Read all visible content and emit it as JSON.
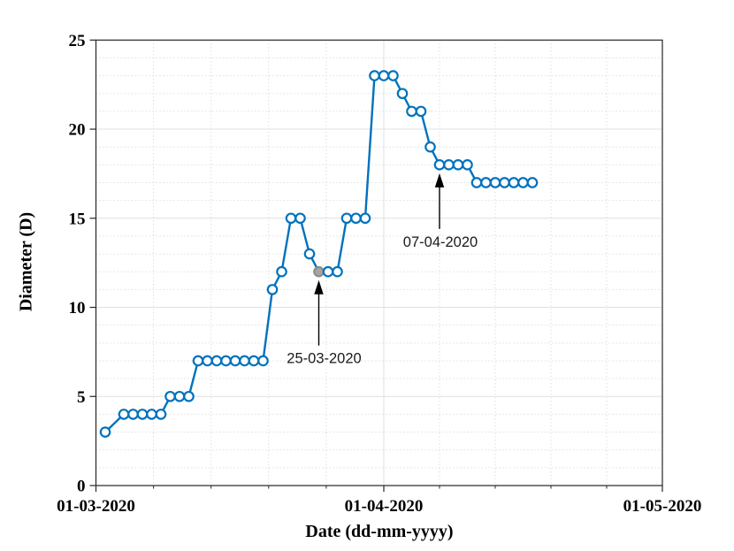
{
  "chart_data": {
    "type": "line",
    "title": "",
    "xlabel": "Date (dd-mm-yyyy)",
    "ylabel": "Diameter (D)",
    "xlim": [
      "01-03-2020",
      "01-05-2020"
    ],
    "ylim": [
      0,
      25
    ],
    "x_ticks": [
      "01-03-2020",
      "01-04-2020",
      "01-05-2020"
    ],
    "y_ticks": [
      0,
      5,
      10,
      15,
      20,
      25
    ],
    "y_minor_step": 1,
    "x_minor_divisions": 5,
    "grid": "major-solid-minor-dotted",
    "legend": "none",
    "series": [
      {
        "name": "diameter",
        "marker": "open-circle",
        "color": "#0072BD",
        "x": [
          "02-03-2020",
          "04-03-2020",
          "05-03-2020",
          "06-03-2020",
          "07-03-2020",
          "08-03-2020",
          "09-03-2020",
          "10-03-2020",
          "11-03-2020",
          "12-03-2020",
          "13-03-2020",
          "14-03-2020",
          "15-03-2020",
          "16-03-2020",
          "17-03-2020",
          "18-03-2020",
          "19-03-2020",
          "20-03-2020",
          "21-03-2020",
          "22-03-2020",
          "23-03-2020",
          "24-03-2020",
          "25-03-2020",
          "26-03-2020",
          "27-03-2020",
          "28-03-2020",
          "29-03-2020",
          "30-03-2020",
          "31-03-2020",
          "01-04-2020",
          "02-04-2020",
          "03-04-2020",
          "04-04-2020",
          "05-04-2020",
          "06-04-2020",
          "07-04-2020",
          "08-04-2020",
          "09-04-2020",
          "10-04-2020",
          "11-04-2020",
          "12-04-2020",
          "13-04-2020",
          "14-04-2020",
          "15-04-2020",
          "16-04-2020",
          "17-04-2020"
        ],
        "y": [
          3,
          4,
          4,
          4,
          4,
          4,
          5,
          5,
          5,
          7,
          7,
          7,
          7,
          7,
          7,
          7,
          7,
          11,
          12,
          15,
          15,
          13,
          12,
          12,
          12,
          15,
          15,
          15,
          23,
          23,
          23,
          22,
          21,
          21,
          19,
          18,
          18,
          18,
          18,
          17,
          17,
          17,
          17,
          17,
          17,
          17
        ]
      }
    ],
    "highlight_point": {
      "date": "25-03-2020",
      "value": 12,
      "fill": "#a6a6a6",
      "edge": "#8c8c8c"
    },
    "annotations": [
      {
        "label": "25-03-2020",
        "target_date": "25-03-2020",
        "target_value": 12,
        "arrow": "up"
      },
      {
        "label": "07-04-2020",
        "target_date": "07-04-2020",
        "target_value": 18,
        "arrow": "up"
      }
    ],
    "colors": {
      "line": "#0072BD",
      "marker_fill": "#ffffff",
      "grid_major": "#e0e0e0",
      "grid_minor": "#cfcfcf",
      "axis": "#262626",
      "text": "#000000",
      "annotation_text": "#1a1a1a"
    }
  }
}
